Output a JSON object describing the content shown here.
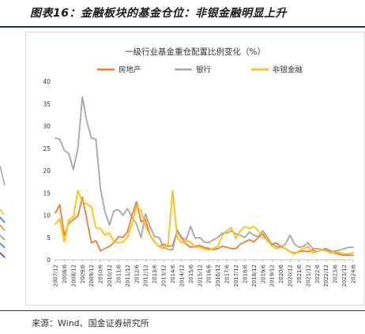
{
  "figure_title": "图表16：金融板块的基金仓位：非银金融明显上升",
  "source_note": "来源：Wind、国金证券研究所",
  "colors": {
    "real_estate": "#ED7D31",
    "banks": "#A5A5A5",
    "nonbank": "#FFC000",
    "rule": "#0d3b6e",
    "axis": "#bfbfbf"
  },
  "chart_data": {
    "type": "line",
    "title": "一级行业基金重仓配置比例变化（%）",
    "xlabel": "",
    "ylabel": "",
    "ylim": [
      0,
      40
    ],
    "yticks": [
      0,
      5,
      10,
      15,
      20,
      25,
      30,
      35,
      40
    ],
    "grid": false,
    "legend_position": "top",
    "x": [
      "2007/12",
      "2008/3",
      "2008/6",
      "2008/9",
      "2008/12",
      "2009/3",
      "2009/6",
      "2009/9",
      "2009/12",
      "2010/3",
      "2010/6",
      "2010/9",
      "2010/12",
      "2011/3",
      "2011/6",
      "2011/9",
      "2011/12",
      "2012/3",
      "2012/6",
      "2012/9",
      "2012/12",
      "2013/3",
      "2013/6",
      "2013/9",
      "2013/12",
      "2014/3",
      "2014/6",
      "2014/9",
      "2014/12",
      "2015/3",
      "2015/6",
      "2015/9",
      "2015/12",
      "2016/3",
      "2016/6",
      "2016/9",
      "2016/12",
      "2017/3",
      "2017/6",
      "2017/9",
      "2017/12",
      "2018/3",
      "2018/6",
      "2018/9",
      "2018/12",
      "2019/3",
      "2019/6",
      "2019/9",
      "2019/12",
      "2020/3",
      "2020/6",
      "2020/9",
      "2020/12",
      "2021/3",
      "2021/6",
      "2021/9",
      "2021/12",
      "2022/3",
      "2022/6",
      "2022/9",
      "2022/12",
      "2023/3",
      "2023/6",
      "2023/9",
      "2023/12",
      "2024/3",
      "2024/6"
    ],
    "x_tick_labels": [
      "2007/12",
      "2008/6",
      "2008/12",
      "2009/6",
      "2009/12",
      "2010/6",
      "2010/12",
      "2011/6",
      "2011/12",
      "2012/6",
      "2012/12",
      "2013/6",
      "2013/12",
      "2014/6",
      "2014/12",
      "2015/6",
      "2015/12",
      "2016/6",
      "2016/12",
      "2017/6",
      "2017/12",
      "2018/6",
      "2018/12",
      "2019/6",
      "2019/12",
      "2020/6",
      "2020/12",
      "2021/6",
      "2021/12",
      "2022/6",
      "2022/12",
      "2023/6",
      "2023/12",
      "2024/6"
    ],
    "series": [
      {
        "name": "房地产",
        "color": "#ED7D31",
        "values": [
          10.5,
          12.3,
          5.5,
          8.2,
          9.0,
          9.8,
          14.0,
          9.0,
          3.8,
          4.3,
          2.0,
          2.5,
          3.0,
          3.8,
          5.2,
          5.0,
          6.2,
          10.0,
          13.0,
          8.5,
          9.0,
          5.5,
          4.0,
          3.0,
          3.5,
          3.0,
          3.2,
          6.5,
          4.8,
          3.5,
          2.8,
          3.0,
          3.2,
          2.8,
          2.5,
          2.3,
          2.5,
          3.0,
          2.8,
          2.5,
          2.5,
          3.5,
          4.0,
          4.5,
          4.0,
          5.0,
          5.8,
          4.2,
          3.5,
          3.8,
          3.0,
          2.5,
          1.8,
          1.5,
          1.8,
          2.0,
          1.8,
          2.2,
          1.8,
          2.2,
          2.5,
          2.0,
          1.5,
          1.2,
          1.0,
          1.0,
          1.0
        ]
      },
      {
        "name": "银行",
        "color": "#A5A5A5",
        "values": [
          27.3,
          27.0,
          24.5,
          23.8,
          20.2,
          25.0,
          36.5,
          31.0,
          27.3,
          27.0,
          16.0,
          10.8,
          7.8,
          11.0,
          11.2,
          10.0,
          11.5,
          9.5,
          8.0,
          5.0,
          10.3,
          7.5,
          5.2,
          5.0,
          2.8,
          2.3,
          2.2,
          6.8,
          5.0,
          4.5,
          7.5,
          4.8,
          5.0,
          4.0,
          3.8,
          4.5,
          5.0,
          6.0,
          6.0,
          6.5,
          5.8,
          5.5,
          5.0,
          6.2,
          5.5,
          5.2,
          6.5,
          5.0,
          3.5,
          3.0,
          2.8,
          3.5,
          5.5,
          3.5,
          2.8,
          3.0,
          3.8,
          2.5,
          2.5,
          2.3,
          2.2,
          1.8,
          2.0,
          2.2,
          2.5,
          2.8,
          2.8
        ]
      },
      {
        "name": "非银金融",
        "color": "#FFC000",
        "values": [
          8.0,
          9.2,
          4.0,
          9.0,
          9.5,
          15.5,
          13.0,
          12.5,
          11.8,
          7.2,
          7.0,
          5.5,
          6.0,
          4.0,
          3.8,
          4.0,
          5.0,
          8.0,
          12.0,
          11.0,
          7.5,
          5.5,
          4.0,
          3.0,
          2.5,
          3.5,
          15.5,
          5.0,
          3.8,
          4.3,
          4.0,
          2.8,
          2.8,
          2.5,
          2.2,
          2.5,
          3.0,
          5.5,
          6.5,
          7.2,
          4.8,
          6.5,
          7.5,
          7.0,
          7.5,
          6.5,
          5.0,
          4.5,
          3.0,
          2.5,
          2.8,
          2.5,
          1.8,
          1.3,
          2.0,
          2.5,
          3.0,
          1.5,
          1.8,
          2.2,
          2.0,
          1.5,
          1.8,
          1.6,
          1.3,
          1.3,
          1.6
        ]
      }
    ]
  }
}
